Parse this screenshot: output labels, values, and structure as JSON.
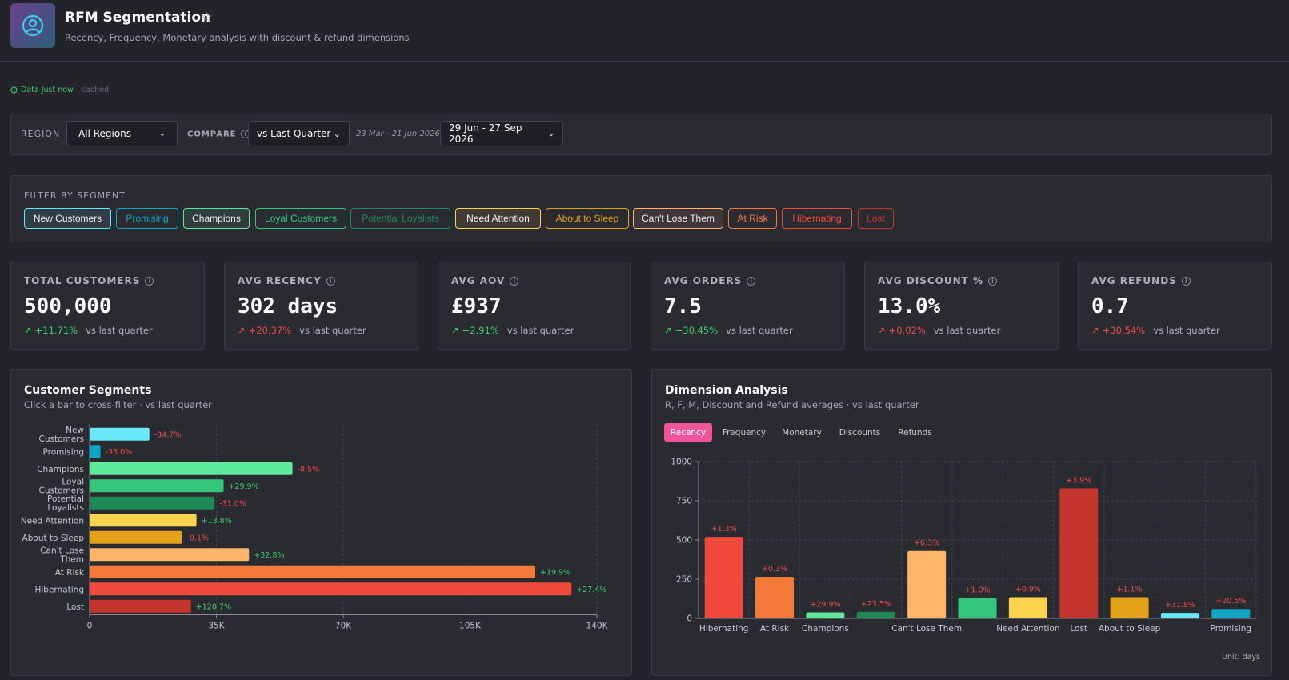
{
  "header": {
    "title": "RFM Segmentation",
    "subtitle": "Recency, Frequency, Monetary analysis with discount & refund dimensions",
    "icon": "user-circle-icon"
  },
  "status": {
    "label": "Data Just now",
    "suffix": "· cached"
  },
  "filters": {
    "region_label": "REGION",
    "region_value": "All Regions",
    "compare_label": "COMPARE",
    "compare_value": "vs Last Quarter",
    "compare_range": "23 Mar - 21 Jun 2026",
    "date_range": "29 Jun - 27 Sep 2026"
  },
  "segment_filter": {
    "label": "FILTER BY SEGMENT",
    "segments": [
      {
        "label": "New Customers",
        "color": "#67e8f9",
        "active": true
      },
      {
        "label": "Promising",
        "color": "#0ea5c6",
        "active": false
      },
      {
        "label": "Champions",
        "color": "#5eea9a",
        "active": true
      },
      {
        "label": "Loyal Customers",
        "color": "#34c77b",
        "active": false
      },
      {
        "label": "Potential Loyalists",
        "color": "#1f8a55",
        "active": false
      },
      {
        "label": "Need Attention",
        "color": "#fcd34d",
        "active": true
      },
      {
        "label": "About to Sleep",
        "color": "#e3a21a",
        "active": false
      },
      {
        "label": "Can't Lose Them",
        "color": "#fdb56a",
        "active": true
      },
      {
        "label": "At Risk",
        "color": "#f57a3a",
        "active": false
      },
      {
        "label": "Hibernating",
        "color": "#ef4a3c",
        "active": false
      },
      {
        "label": "Lost",
        "color": "#c4352d",
        "active": false
      }
    ]
  },
  "kpis": [
    {
      "title": "TOTAL CUSTOMERS",
      "value": "500,000",
      "delta": "+11.71%",
      "trend": "good",
      "compare": "vs last quarter"
    },
    {
      "title": "AVG RECENCY",
      "value": "302 days",
      "delta": "+20.37%",
      "trend": "bad",
      "compare": "vs last quarter"
    },
    {
      "title": "AVG AOV",
      "value": "£937",
      "delta": "+2.91%",
      "trend": "good",
      "compare": "vs last quarter"
    },
    {
      "title": "AVG ORDERS",
      "value": "7.5",
      "delta": "+30.45%",
      "trend": "good",
      "compare": "vs last quarter"
    },
    {
      "title": "AVG DISCOUNT %",
      "value": "13.0%",
      "delta": "+0.02%",
      "trend": "bad",
      "compare": "vs last quarter"
    },
    {
      "title": "AVG REFUNDS",
      "value": "0.7",
      "delta": "+30.54%",
      "trend": "bad",
      "compare": "vs last quarter"
    }
  ],
  "segments_card": {
    "title": "Customer Segments",
    "subtitle": "Click a bar to cross-filter · vs last quarter"
  },
  "dimension_card": {
    "title": "Dimension Analysis",
    "subtitle": "R, F, M, Discount and Refund averages · vs last quarter",
    "tabs": [
      "Recency",
      "Frequency",
      "Monetary",
      "Discounts",
      "Refunds"
    ],
    "active_tab": "Recency",
    "unit_note": "Unit: days"
  },
  "chart_data": [
    {
      "type": "bar",
      "orientation": "horizontal",
      "categories": [
        [
          "New",
          "Customers"
        ],
        [
          "Promising"
        ],
        [
          "Champions"
        ],
        [
          "Loyal",
          "Customers"
        ],
        [
          "Potential",
          "Loyalists"
        ],
        [
          "Need Attention"
        ],
        [
          "About to Sleep"
        ],
        [
          "Can't Lose",
          "Them"
        ],
        [
          "At Risk"
        ],
        [
          "Hibernating"
        ],
        [
          "Lost"
        ]
      ],
      "values": [
        16500,
        3000,
        56000,
        37000,
        34500,
        29500,
        25500,
        44000,
        123000,
        133000,
        28000
      ],
      "labels": [
        "-34.7%",
        "-33.0%",
        "-8.5%",
        "+29.9%",
        "-31.0%",
        "+13.8%",
        "-0.1%",
        "+32.8%",
        "+19.9%",
        "+27.4%",
        "+120.7%"
      ],
      "label_colors": [
        "#f04a4a",
        "#f04a4a",
        "#f04a4a",
        "#3fcf6a",
        "#f04a4a",
        "#3fcf6a",
        "#f04a4a",
        "#3fcf6a",
        "#3fcf6a",
        "#3fcf6a",
        "#3fcf6a"
      ],
      "colors": [
        "#67e8f9",
        "#0ea5c6",
        "#5eea9a",
        "#34c77b",
        "#1f8a55",
        "#fcd34d",
        "#e3a21a",
        "#fdb56a",
        "#f57a3a",
        "#ef4a3c",
        "#c4352d"
      ],
      "xlim": [
        0,
        140000
      ],
      "xticks": [
        "0",
        "35K",
        "70K",
        "105K",
        "140K"
      ],
      "grid": true
    },
    {
      "type": "bar",
      "categories": [
        "Hibernating",
        "At Risk",
        "Champions",
        "Loyal Customers",
        "Can't Lose Them",
        "Potential Loyalists",
        "Need Attention",
        "Lost",
        "About to Sleep",
        "New Customers",
        "Promising"
      ],
      "tick_labels": [
        "Hibernating",
        "At Risk",
        "Champions",
        "",
        "Can't Lose Them",
        "",
        "Need Attention",
        "Lost",
        "About to Sleep",
        "",
        "Promising"
      ],
      "values": [
        520,
        265,
        38,
        42,
        430,
        130,
        135,
        830,
        135,
        35,
        60
      ],
      "labels": [
        "+1.3%",
        "+0.3%",
        "+29.9%",
        "+23.5%",
        "+6.3%",
        "+1.0%",
        "+0.9%",
        "+3.9%",
        "+1.1%",
        "+31.8%",
        "+20.5%"
      ],
      "colors": [
        "#ef4a3c",
        "#f57a3a",
        "#5eea9a",
        "#1f8a55",
        "#fdb56a",
        "#34c77b",
        "#fcd34d",
        "#c4352d",
        "#e3a21a",
        "#67e8f9",
        "#0ea5c6"
      ],
      "label_color": "#f04a4a",
      "ylim": [
        0,
        1000
      ],
      "yticks": [
        0,
        250,
        500,
        750,
        1000
      ],
      "grid": true
    }
  ]
}
